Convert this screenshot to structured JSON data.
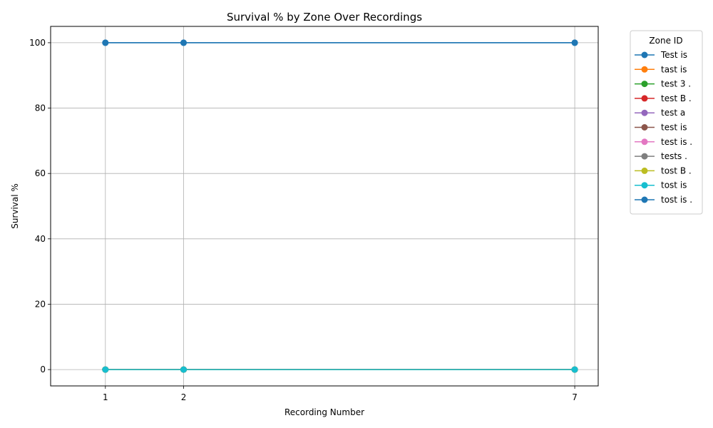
{
  "chart_data": {
    "type": "line",
    "title": "Survival % by Zone Over Recordings",
    "xlabel": "Recording Number",
    "ylabel": "Survival %",
    "x": [
      1,
      2,
      7
    ],
    "xticks": [
      1,
      2,
      7
    ],
    "xlim": [
      0.3,
      7.3
    ],
    "yticks": [
      0,
      20,
      40,
      60,
      80,
      100
    ],
    "ylim": [
      -5,
      105
    ],
    "grid": true,
    "legend": {
      "title": "Zone ID",
      "placement": "outside-right-top"
    },
    "series": [
      {
        "name": "Test is",
        "color": "#1f77b4",
        "values": [
          100,
          100,
          100
        ]
      },
      {
        "name": "tast is",
        "color": "#ff7f0e",
        "values": [
          0,
          0,
          0
        ]
      },
      {
        "name": "test 3 .",
        "color": "#2ca02c",
        "values": [
          0,
          0,
          0
        ]
      },
      {
        "name": "test B .",
        "color": "#d62728",
        "values": [
          0,
          0,
          0
        ]
      },
      {
        "name": "test a",
        "color": "#9467bd",
        "values": [
          0,
          0,
          0
        ]
      },
      {
        "name": "test is",
        "color": "#8c564b",
        "values": [
          0,
          0,
          0
        ]
      },
      {
        "name": "test is .",
        "color": "#e377c2",
        "values": [
          0,
          0,
          0
        ]
      },
      {
        "name": "tests .",
        "color": "#7f7f7f",
        "values": [
          0,
          0,
          0
        ]
      },
      {
        "name": "tost B .",
        "color": "#bcbd22",
        "values": [
          0,
          0,
          0
        ]
      },
      {
        "name": "tost is",
        "color": "#17becf",
        "values": [
          0,
          0,
          0
        ]
      },
      {
        "name": "tost is .",
        "color": "#1f77b4",
        "values": [
          100,
          100,
          100
        ]
      }
    ]
  }
}
